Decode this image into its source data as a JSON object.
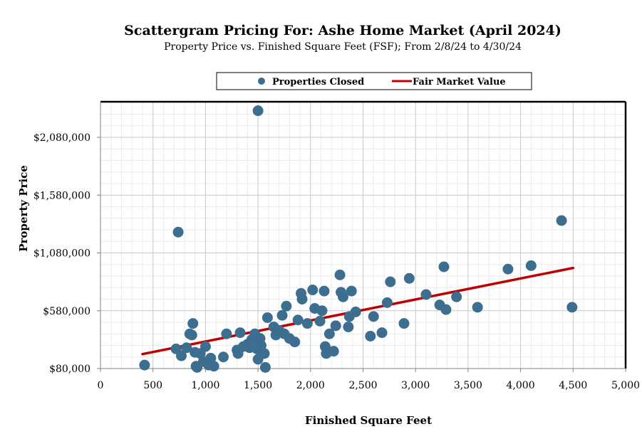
{
  "chart_data": {
    "type": "scatter",
    "title": "Scattergram Pricing For: Ashe Home Market (April 2024)",
    "subtitle": "Property Price vs. Finished Square Feet (FSF); From 2/8/24 to 4/30/24",
    "xlabel": "Finished Square Feet",
    "ylabel": "Property Price",
    "xlim": [
      0,
      5000
    ],
    "ylim": [
      80000,
      2310000
    ],
    "x_ticks": [
      0,
      500,
      1000,
      1500,
      2000,
      2500,
      3000,
      3500,
      4000,
      4500,
      5000
    ],
    "x_tick_labels": [
      "0",
      "500",
      "1,000",
      "1,500",
      "2,000",
      "2,500",
      "3,000",
      "3,500",
      "4,000",
      "4,500",
      "5,000"
    ],
    "y_ticks": [
      80000,
      580000,
      1080000,
      1580000,
      2080000
    ],
    "y_tick_labels": [
      "$80,000",
      "$580,000",
      "$1,080,000",
      "$1,580,000",
      "$2,080,000"
    ],
    "grid": true,
    "legend_position": "top-center",
    "colors": {
      "points": "#3D6E8F",
      "fair_value_line": "#C00000",
      "plot_border": "#000000",
      "grid": "#C9C9C9"
    },
    "series": [
      {
        "name": "Properties Closed",
        "kind": "scatter",
        "x": [
          420,
          720,
          740,
          770,
          820,
          850,
          870,
          880,
          900,
          910,
          920,
          950,
          980,
          1000,
          1030,
          1050,
          1080,
          1170,
          1200,
          1300,
          1310,
          1330,
          1360,
          1400,
          1420,
          1440,
          1470,
          1490,
          1500,
          1510,
          1520,
          1530,
          1560,
          1570,
          1590,
          1650,
          1670,
          1700,
          1730,
          1750,
          1770,
          1800,
          1850,
          1880,
          1910,
          1920,
          1970,
          2020,
          2040,
          2090,
          2110,
          2130,
          2140,
          2150,
          2180,
          2220,
          2240,
          2280,
          2290,
          2310,
          2360,
          2370,
          2390,
          2430,
          2570,
          2600,
          2680,
          2730,
          2760,
          2890,
          2940,
          3100,
          3230,
          3270,
          3290,
          3390,
          3590,
          3880,
          4100,
          4390,
          4490
        ],
        "y": [
          110000,
          250000,
          1260000,
          190000,
          260000,
          380000,
          370000,
          470000,
          220000,
          100000,
          90000,
          210000,
          140000,
          270000,
          110000,
          170000,
          100000,
          180000,
          380000,
          240000,
          210000,
          390000,
          270000,
          290000,
          260000,
          330000,
          380000,
          250000,
          160000,
          310000,
          340000,
          280000,
          210000,
          90000,
          520000,
          440000,
          370000,
          410000,
          540000,
          380000,
          620000,
          340000,
          310000,
          500000,
          730000,
          680000,
          470000,
          760000,
          600000,
          490000,
          580000,
          750000,
          270000,
          210000,
          380000,
          230000,
          450000,
          890000,
          740000,
          700000,
          440000,
          530000,
          750000,
          570000,
          360000,
          530000,
          390000,
          650000,
          830000,
          470000,
          860000,
          720000,
          630000,
          960000,
          590000,
          700000,
          610000,
          940000,
          970000,
          1360000,
          610000
        ]
      },
      {
        "name": "Fair Market Value",
        "kind": "line",
        "x": [
          400,
          4500
        ],
        "y": [
          205000,
          950000
        ]
      }
    ],
    "outliers_above_axis": [
      {
        "x": 1500,
        "y": 2310000
      }
    ]
  }
}
